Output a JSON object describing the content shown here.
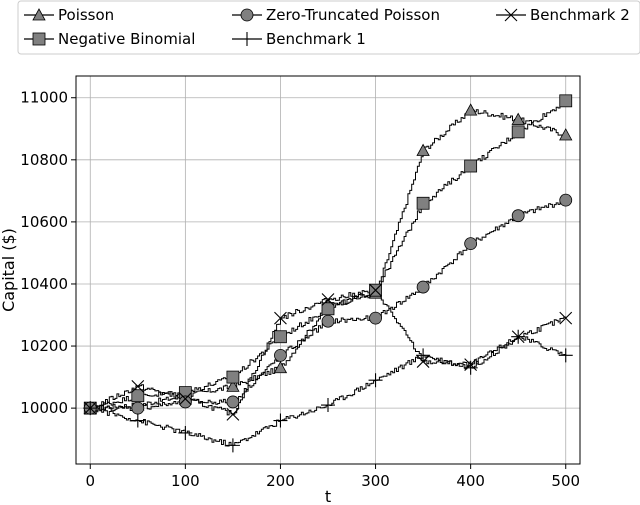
{
  "chart_data": {
    "type": "line",
    "title": "",
    "xlabel": "t",
    "ylabel": "Capital ($)",
    "xlim": [
      -15,
      515
    ],
    "ylim": [
      9820,
      11070
    ],
    "x_ticks": [
      0,
      100,
      200,
      300,
      400,
      500
    ],
    "y_ticks": [
      10000,
      10200,
      10400,
      10600,
      10800,
      11000
    ],
    "x_tick_labels": [
      "0",
      "100",
      "200",
      "300",
      "400",
      "500"
    ],
    "y_tick_labels": [
      "10000",
      "10200",
      "10400",
      "10600",
      "10800",
      "11000"
    ],
    "grid": true,
    "legend_position": "top",
    "series": [
      {
        "name": "Poisson",
        "marker": "triangle",
        "x": [
          0,
          50,
          100,
          150,
          200,
          250,
          300,
          350,
          400,
          450,
          500
        ],
        "y": [
          10000,
          10010,
          10040,
          10070,
          10130,
          10330,
          10370,
          10830,
          10960,
          10930,
          10880
        ]
      },
      {
        "name": "Negative Binomial",
        "marker": "square",
        "x": [
          0,
          50,
          100,
          150,
          200,
          250,
          300,
          350,
          400,
          450,
          500
        ],
        "y": [
          10000,
          10040,
          10050,
          10100,
          10230,
          10320,
          10380,
          10660,
          10780,
          10890,
          10990
        ]
      },
      {
        "name": "Zero-Truncated Poisson",
        "marker": "circle",
        "x": [
          0,
          50,
          100,
          150,
          200,
          250,
          300,
          350,
          400,
          450,
          500
        ],
        "y": [
          10000,
          10000,
          10020,
          10020,
          10170,
          10280,
          10290,
          10390,
          10530,
          10620,
          10670
        ]
      },
      {
        "name": "Benchmark 1",
        "marker": "plus",
        "x": [
          0,
          50,
          100,
          150,
          200,
          250,
          300,
          350,
          400,
          450,
          500
        ],
        "y": [
          10000,
          9960,
          9920,
          9880,
          9960,
          10010,
          10090,
          10170,
          10130,
          10230,
          10170
        ]
      },
      {
        "name": "Benchmark 2",
        "marker": "x",
        "x": [
          0,
          50,
          100,
          150,
          200,
          250,
          300,
          350,
          400,
          450,
          500
        ],
        "y": [
          10000,
          10070,
          10030,
          9980,
          10290,
          10350,
          10380,
          10150,
          10140,
          10230,
          10290
        ]
      }
    ]
  }
}
